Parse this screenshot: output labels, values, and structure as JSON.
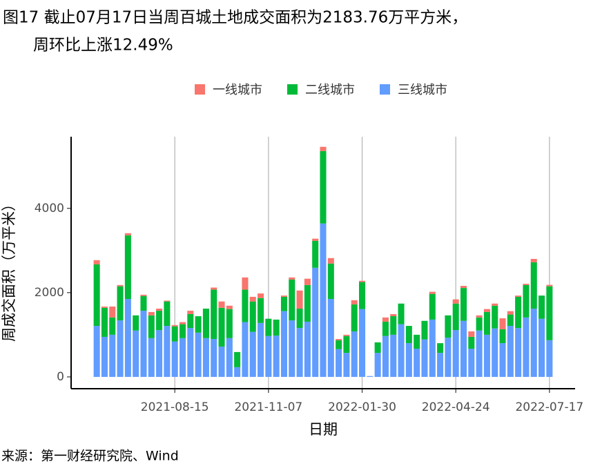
{
  "chart_data": {
    "type": "bar",
    "stacked": true,
    "title": "图17 截止07月17日当周百城土地成交面积为2183.76万平方米，",
    "subtitle": "周环比上涨12.49%",
    "x_label": "日期",
    "y_label": "周成交面积（万平米）",
    "source": "来源：第一财经研究院、Wind",
    "legend": "top",
    "grid": "x",
    "x": [
      "2021-06-06",
      "2021-06-13",
      "2021-06-20",
      "2021-06-27",
      "2021-07-04",
      "2021-07-11",
      "2021-07-18",
      "2021-07-25",
      "2021-08-01",
      "2021-08-08",
      "2021-08-15",
      "2021-08-22",
      "2021-08-29",
      "2021-09-05",
      "2021-09-12",
      "2021-09-19",
      "2021-09-26",
      "2021-10-03",
      "2021-10-10",
      "2021-10-17",
      "2021-10-24",
      "2021-10-31",
      "2021-11-07",
      "2021-11-14",
      "2021-11-21",
      "2021-11-28",
      "2021-12-05",
      "2021-12-12",
      "2021-12-19",
      "2021-12-26",
      "2022-01-02",
      "2022-01-09",
      "2022-01-16",
      "2022-01-23",
      "2022-01-30",
      "2022-02-06",
      "2022-02-13",
      "2022-02-20",
      "2022-02-27",
      "2022-03-06",
      "2022-03-13",
      "2022-03-20",
      "2022-03-27",
      "2022-04-03",
      "2022-04-10",
      "2022-04-17",
      "2022-04-24",
      "2022-05-01",
      "2022-05-08",
      "2022-05-15",
      "2022-05-22",
      "2022-05-29",
      "2022-06-05",
      "2022-06-12",
      "2022-06-19",
      "2022-06-26",
      "2022-07-03",
      "2022-07-10",
      "2022-07-17"
    ],
    "series": [
      {
        "name": "一线城市",
        "color": "#f8766d",
        "values": [
          100,
          30,
          260,
          30,
          50,
          0,
          30,
          80,
          50,
          20,
          30,
          50,
          80,
          0,
          0,
          50,
          150,
          80,
          0,
          290,
          110,
          110,
          0,
          0,
          30,
          50,
          430,
          150,
          50,
          100,
          130,
          30,
          30,
          100,
          30,
          0,
          0,
          100,
          50,
          0,
          0,
          0,
          0,
          50,
          0,
          0,
          100,
          50,
          130,
          50,
          70,
          50,
          260,
          80,
          30,
          30,
          80,
          0,
          34
        ]
      },
      {
        "name": "二线城市",
        "color": "#00ba38",
        "values": [
          1460,
          690,
          410,
          810,
          1510,
          360,
          350,
          540,
          460,
          580,
          360,
          330,
          330,
          390,
          700,
          1170,
          920,
          690,
          360,
          770,
          720,
          590,
          410,
          380,
          340,
          970,
          460,
          870,
          640,
          1720,
          840,
          210,
          400,
          640,
          640,
          0,
          250,
          340,
          440,
          490,
          410,
          330,
          440,
          610,
          230,
          530,
          630,
          780,
          280,
          310,
          540,
          540,
          330,
          270,
          740,
          770,
          1100,
          550,
          1280
        ]
      },
      {
        "name": "三线城市",
        "color": "#619cff",
        "values": [
          1210,
          950,
          1000,
          1340,
          1850,
          1100,
          1570,
          920,
          1110,
          1210,
          840,
          920,
          1160,
          1050,
          920,
          900,
          720,
          920,
          230,
          1300,
          1070,
          1280,
          970,
          980,
          1560,
          1340,
          1160,
          1310,
          2590,
          3640,
          1850,
          660,
          570,
          1080,
          1610,
          20,
          570,
          970,
          1000,
          1250,
          800,
          670,
          890,
          1360,
          570,
          930,
          1110,
          1330,
          670,
          1100,
          1000,
          1150,
          800,
          1210,
          1160,
          1410,
          1620,
          1380,
          870
        ]
      }
    ],
    "xlim": [
      "2021-05-14",
      "2022-08-09"
    ],
    "xticks": [
      "2021-08-15",
      "2021-11-07",
      "2022-01-30",
      "2022-04-24",
      "2022-07-17"
    ],
    "ylim": [
      -280,
      5700
    ],
    "yticks": [
      0,
      2000,
      4000
    ]
  }
}
